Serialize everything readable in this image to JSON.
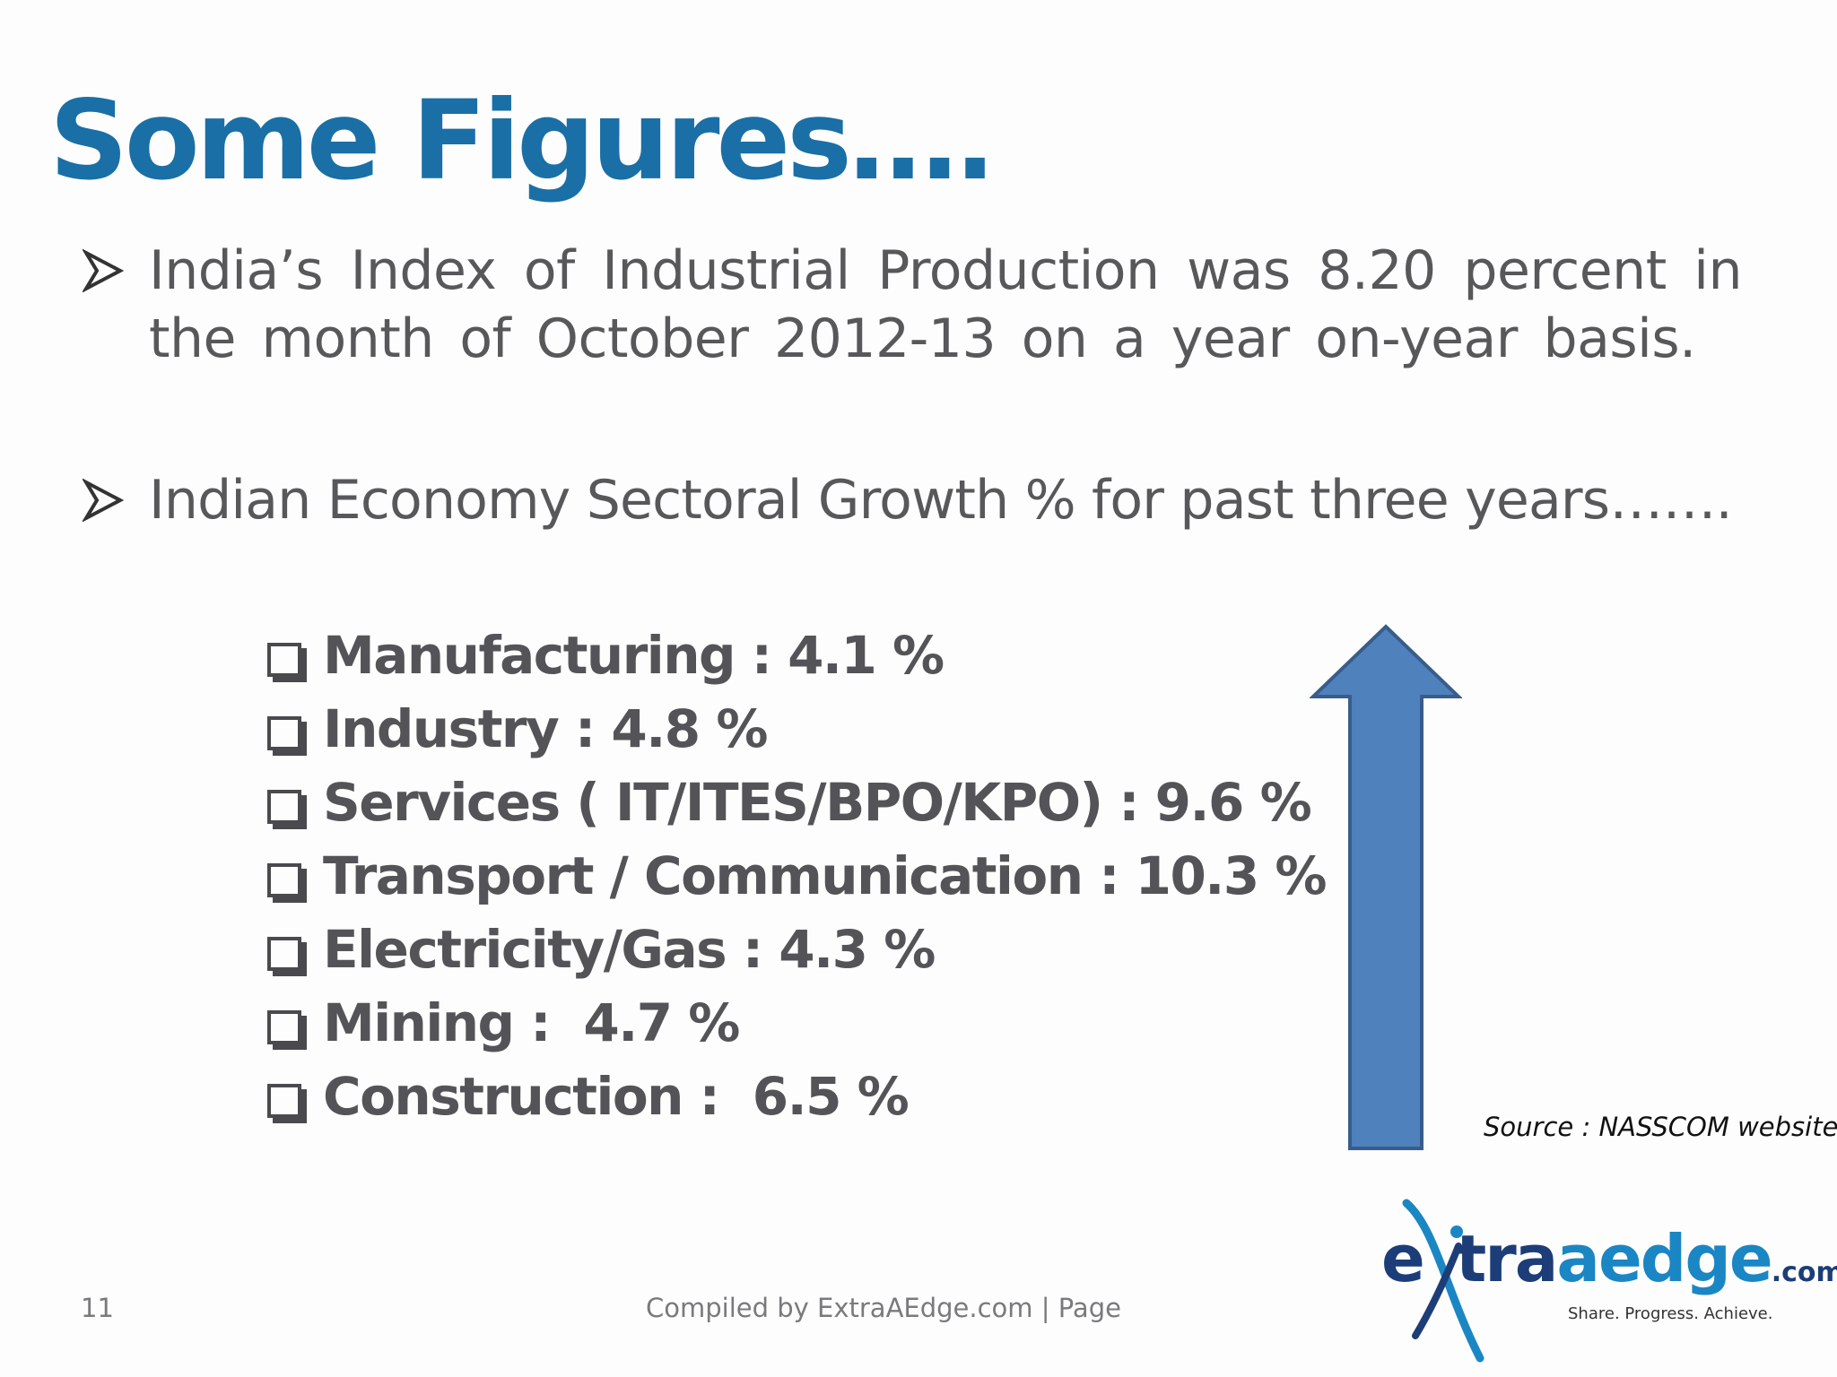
{
  "slide": {
    "title": "Some Figures….",
    "bullets": [
      {
        "text": "India’s Index of Industrial Production was 8.20 percent in the month of October 2012-13 on a year on-year basis."
      },
      {
        "text": "Indian Economy Sectoral Growth % for past three years……."
      }
    ],
    "sectors": [
      {
        "label": "Manufacturing : 4.1 %"
      },
      {
        "label": "Industry : 4.8 %"
      },
      {
        "label": "Services ( IT/ITES/BPO/KPO) : 9.6 %"
      },
      {
        "label": "Transport / Communication : 10.3 %"
      },
      {
        "label": "Electricity/Gas : 4.3 %"
      },
      {
        "label": "Mining :  4.7 %"
      },
      {
        "label": "Construction :  6.5 %"
      }
    ],
    "source": "Source : NASSCOM website",
    "page_number": "11",
    "footer": "Compiled by ExtraAEdge.com | Page"
  },
  "logo": {
    "letter_e": "e",
    "tra": "tra",
    "edge": "aedge",
    "dotcom": ".com",
    "tagline": "Share. Progress. Achieve."
  },
  "colors": {
    "title": "#1a6fa6",
    "body_text": "#555559",
    "arrow_fill": "#4f81bd",
    "arrow_stroke": "#385d8a"
  },
  "icons": {
    "bullet": "arrowhead-bullet-icon",
    "sector_bullet": "checkbox-icon",
    "growth": "up-arrow-icon"
  }
}
